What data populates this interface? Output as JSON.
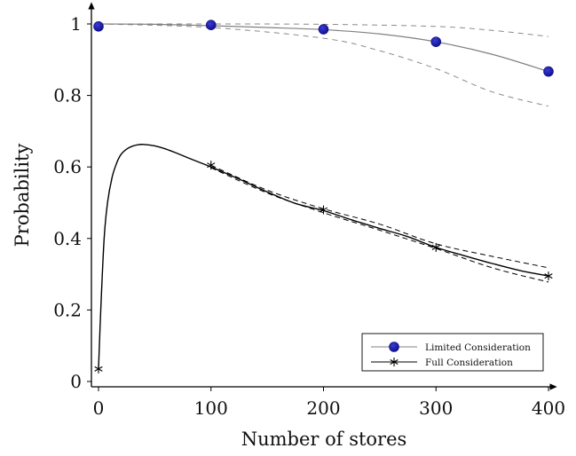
{
  "chart_data": {
    "type": "line",
    "title": "",
    "xlabel": "Number of stores",
    "ylabel": "Probability",
    "xlim": [
      0,
      400
    ],
    "ylim": [
      0,
      1.0
    ],
    "x_ticks": [
      0,
      100,
      200,
      300,
      400
    ],
    "x_tick_labels": [
      "0",
      "100",
      "200",
      "300",
      "400"
    ],
    "y_ticks": [
      0,
      0.2,
      0.4,
      0.6,
      0.8,
      1.0
    ],
    "y_tick_labels": [
      "0",
      "0.2",
      "0.4",
      "0.6",
      "0.8",
      "1"
    ],
    "grid": false,
    "legend_position": "bottom-right",
    "series": [
      {
        "name": "Limited Consideration",
        "color": "#808080",
        "marker": "circle",
        "marker_color": "#1a1aa6",
        "x": [
          0,
          50,
          100,
          150,
          200,
          250,
          300,
          350,
          400
        ],
        "y": [
          1.0,
          0.999,
          0.995,
          0.99,
          0.984,
          0.972,
          0.95,
          0.915,
          0.867
        ],
        "markers": {
          "x": [
            0,
            100,
            200,
            300,
            400
          ],
          "y": [
            0.993,
            0.997,
            0.985,
            0.95,
            0.867
          ]
        },
        "band_upper": {
          "x": [
            0,
            100,
            200,
            300,
            350,
            400
          ],
          "y": [
            1.0,
            1.0,
            0.999,
            0.993,
            0.982,
            0.965
          ]
        },
        "band_lower": {
          "x": [
            0,
            100,
            200,
            250,
            300,
            350,
            400
          ],
          "y": [
            1.0,
            0.99,
            0.96,
            0.925,
            0.875,
            0.81,
            0.77
          ]
        }
      },
      {
        "name": "Full Consideration",
        "color": "#000000",
        "marker": "star",
        "marker_color": "#000000",
        "x": [
          0,
          2,
          5,
          8,
          12,
          16,
          20,
          25,
          30,
          35,
          40,
          50,
          60,
          70,
          80,
          100,
          125,
          150,
          175,
          200,
          225,
          250,
          275,
          300,
          325,
          350,
          375,
          400
        ],
        "y": [
          0.035,
          0.2,
          0.4,
          0.5,
          0.57,
          0.61,
          0.635,
          0.65,
          0.658,
          0.662,
          0.663,
          0.659,
          0.65,
          0.638,
          0.625,
          0.6,
          0.566,
          0.53,
          0.498,
          0.478,
          0.452,
          0.428,
          0.405,
          0.375,
          0.352,
          0.33,
          0.31,
          0.295
        ],
        "markers": {
          "x": [
            0,
            100,
            200,
            300,
            400
          ],
          "y": [
            0.035,
            0.605,
            0.48,
            0.375,
            0.295
          ]
        },
        "band_upper": {
          "x": [
            100,
            150,
            200,
            250,
            300,
            350,
            400
          ],
          "y": [
            0.605,
            0.535,
            0.483,
            0.44,
            0.385,
            0.35,
            0.318
          ]
        },
        "band_lower": {
          "x": [
            100,
            150,
            200,
            250,
            300,
            350,
            400
          ],
          "y": [
            0.598,
            0.527,
            0.472,
            0.423,
            0.372,
            0.318,
            0.278
          ]
        }
      }
    ]
  }
}
